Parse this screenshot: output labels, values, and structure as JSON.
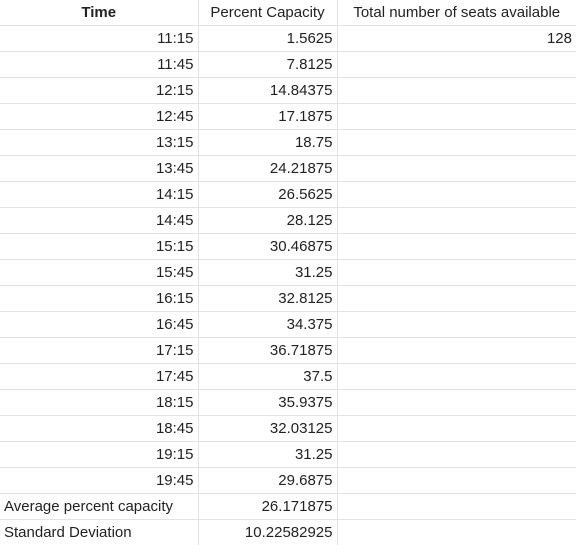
{
  "headers": {
    "time": "Time",
    "percent_capacity": "Percent Capacity",
    "total_seats": "Total number of seats available"
  },
  "total_seats_value": "128",
  "rows": [
    {
      "time": "11:15",
      "percent": "1.5625"
    },
    {
      "time": "11:45",
      "percent": "7.8125"
    },
    {
      "time": "12:15",
      "percent": "14.84375"
    },
    {
      "time": "12:45",
      "percent": "17.1875"
    },
    {
      "time": "13:15",
      "percent": "18.75"
    },
    {
      "time": "13:45",
      "percent": "24.21875"
    },
    {
      "time": "14:15",
      "percent": "26.5625"
    },
    {
      "time": "14:45",
      "percent": "28.125"
    },
    {
      "time": "15:15",
      "percent": "30.46875"
    },
    {
      "time": "15:45",
      "percent": "31.25"
    },
    {
      "time": "16:15",
      "percent": "32.8125"
    },
    {
      "time": "16:45",
      "percent": "34.375"
    },
    {
      "time": "17:15",
      "percent": "36.71875"
    },
    {
      "time": "17:45",
      "percent": "37.5"
    },
    {
      "time": "18:15",
      "percent": "35.9375"
    },
    {
      "time": "18:45",
      "percent": "32.03125"
    },
    {
      "time": "19:15",
      "percent": "31.25"
    },
    {
      "time": "19:45",
      "percent": "29.6875"
    }
  ],
  "summary": {
    "average_label": "Average percent capacity",
    "average_value": "26.171875",
    "stddev_label": "Standard Deviation",
    "stddev_value": "10.22582925"
  }
}
